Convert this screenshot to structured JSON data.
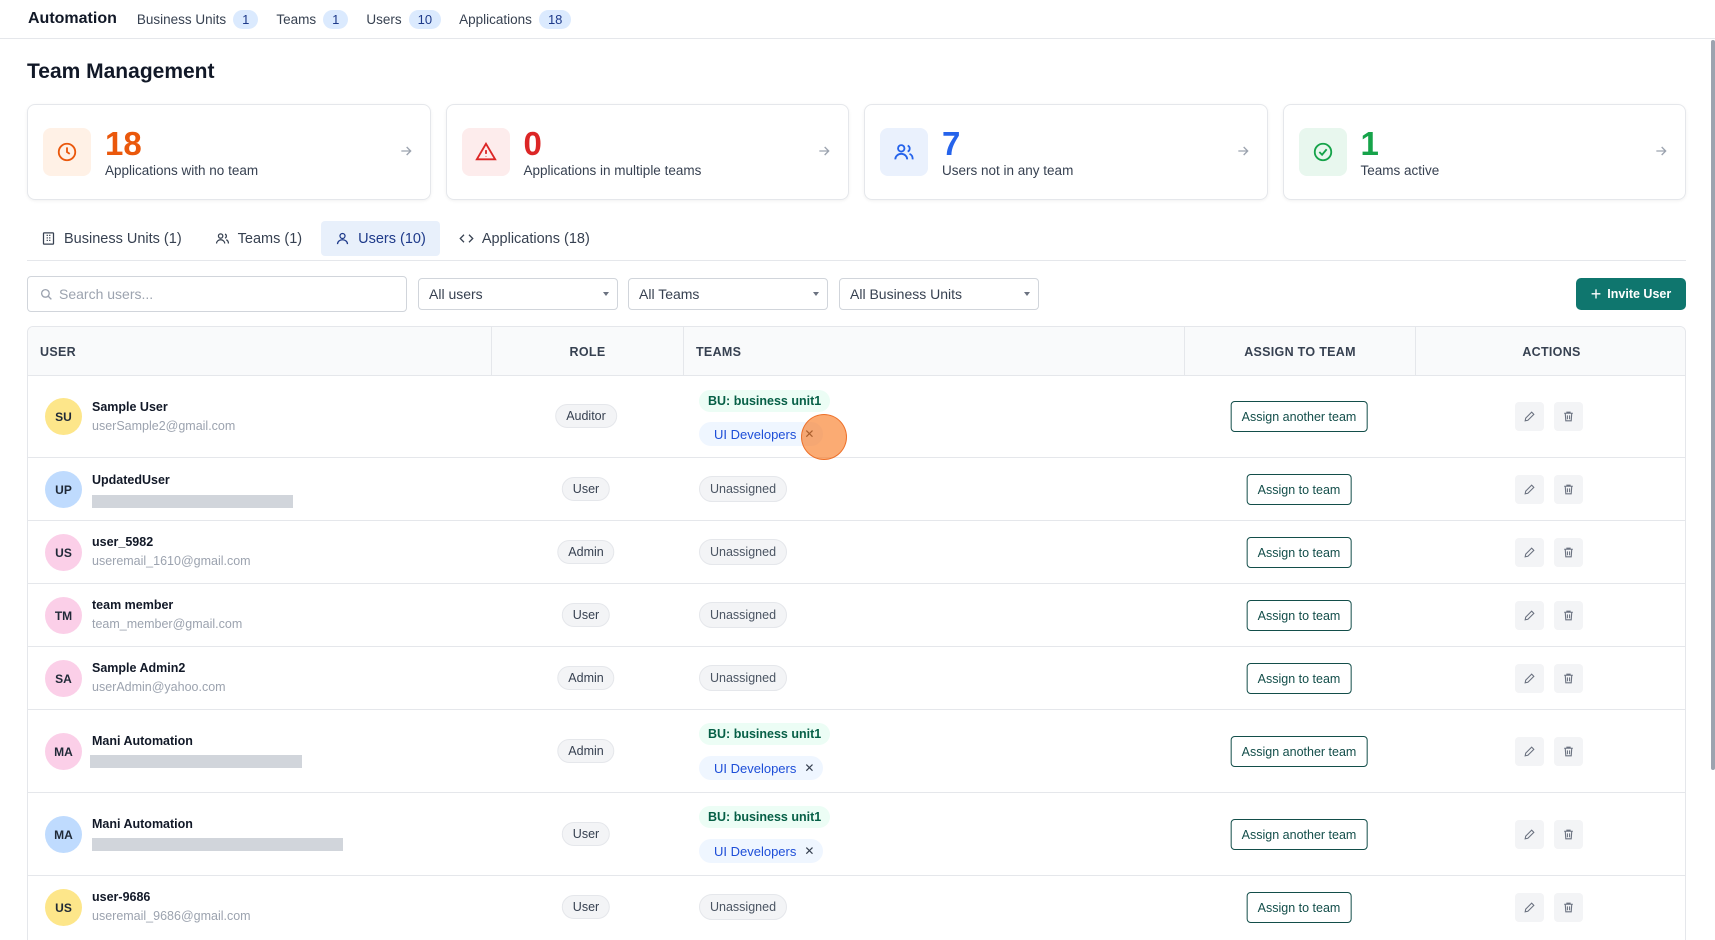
{
  "topnav": {
    "brand": "Automation",
    "items": [
      {
        "label": "Business Units",
        "count": "1"
      },
      {
        "label": "Teams",
        "count": "1"
      },
      {
        "label": "Users",
        "count": "10"
      },
      {
        "label": "Applications",
        "count": "18"
      }
    ]
  },
  "page": {
    "title": "Team Management"
  },
  "stats": [
    {
      "value": "18",
      "label": "Applications with no team",
      "icon": "clock-icon",
      "color": "#ea580c"
    },
    {
      "value": "0",
      "label": "Applications in multiple teams",
      "icon": "warning-icon",
      "color": "#dc2626"
    },
    {
      "value": "7",
      "label": "Users not in any team",
      "icon": "users-icon",
      "color": "#2563eb"
    },
    {
      "value": "1",
      "label": "Teams active",
      "icon": "check-circle-icon",
      "color": "#16a34a"
    }
  ],
  "tabs": [
    {
      "label": "Business Units (1)",
      "icon": "building-icon"
    },
    {
      "label": "Teams (1)",
      "icon": "users-icon"
    },
    {
      "label": "Users (10)",
      "icon": "user-icon",
      "active": true
    },
    {
      "label": "Applications (18)",
      "icon": "code-icon"
    }
  ],
  "filters": {
    "search_placeholder": "Search users...",
    "user_filter": "All users",
    "team_filter": "All Teams",
    "bu_filter": "All Business Units",
    "invite_label": "Invite User"
  },
  "table": {
    "headers": {
      "user": "USER",
      "role": "ROLE",
      "teams": "TEAMS",
      "assign": "ASSIGN TO TEAM",
      "actions": "ACTIONS"
    },
    "rows": [
      {
        "initials": "SU",
        "name": "Sample User",
        "email": "userSample2@gmail.com",
        "role": "Auditor",
        "bu": "BU: business unit1",
        "team": "UI Developers",
        "assign": "Assign another team"
      },
      {
        "initials": "UP",
        "name": "UpdatedUser",
        "email": "",
        "role": "User",
        "unassigned": "Unassigned",
        "assign": "Assign to team"
      },
      {
        "initials": "US",
        "name": "user_5982",
        "email": "useremail_1610@gmail.com",
        "role": "Admin",
        "unassigned": "Unassigned",
        "assign": "Assign to team"
      },
      {
        "initials": "TM",
        "name": "team member",
        "email": "team_member@gmail.com",
        "role": "User",
        "unassigned": "Unassigned",
        "assign": "Assign to team"
      },
      {
        "initials": "SA",
        "name": "Sample Admin2",
        "email": "userAdmin@yahoo.com",
        "role": "Admin",
        "unassigned": "Unassigned",
        "assign": "Assign to team"
      },
      {
        "initials": "MA",
        "name": "Mani Automation",
        "email": "",
        "role": "Admin",
        "bu": "BU: business unit1",
        "team": "UI Developers",
        "assign": "Assign another team"
      },
      {
        "initials": "MA",
        "name": "Mani Automation",
        "email": "",
        "role": "User",
        "bu": "BU: business unit1",
        "team": "UI Developers",
        "assign": "Assign another team"
      },
      {
        "initials": "US",
        "name": "user-9686",
        "email": "useremail_9686@gmail.com",
        "role": "User",
        "unassigned": "Unassigned",
        "assign": "Assign to team"
      }
    ]
  },
  "colors": {
    "accent": "#0f766e",
    "avatar_yellow": "#fde68a",
    "avatar_blue": "#bfdbfe",
    "avatar_pink": "#fbcfe8"
  }
}
